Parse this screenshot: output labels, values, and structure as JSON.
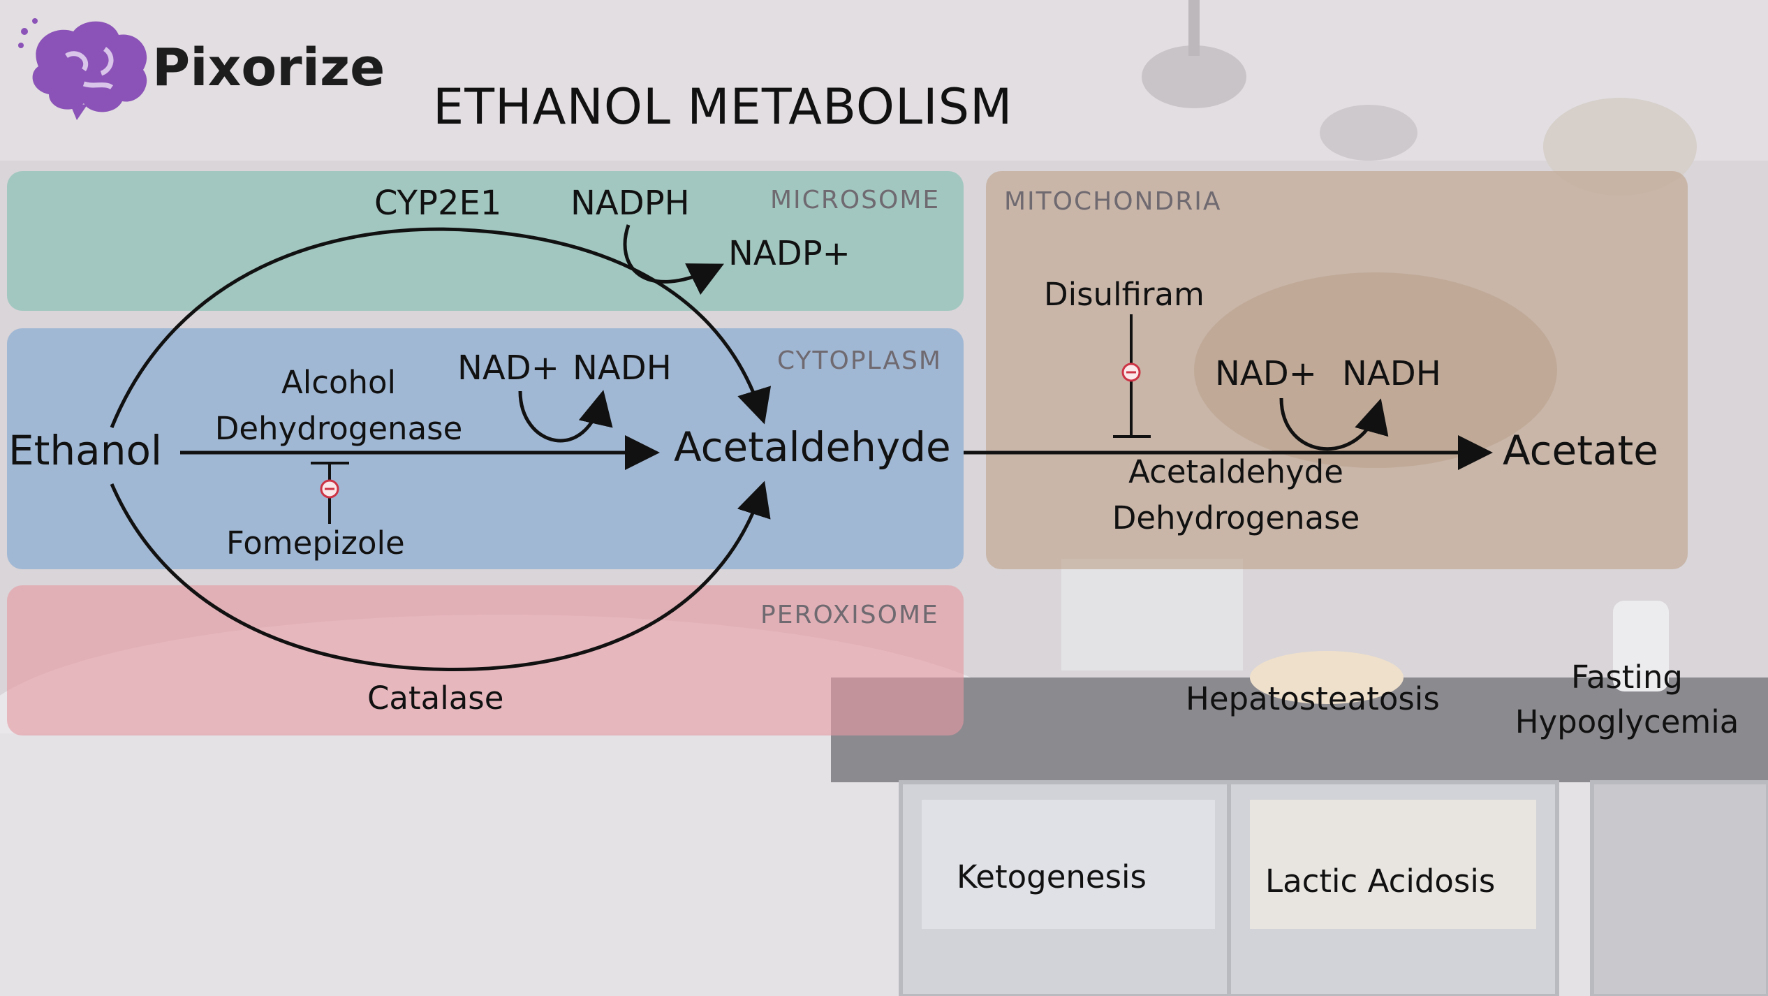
{
  "brand": {
    "name": "Pixorize",
    "logo_icon": "brain-logo-icon",
    "logo_color": "#8b52b7"
  },
  "title": "ETHANOL METABOLISM",
  "regions": {
    "microsome": {
      "label": "MICROSOME",
      "color": "#7fbfb2"
    },
    "cytoplasm": {
      "label": "CYTOPLASM",
      "color": "#7ea6d2"
    },
    "peroxisome": {
      "label": "PEROXISOME",
      "color": "#e59aa3"
    },
    "mitochondria": {
      "label": "MITOCHONDRIA",
      "color": "#bfa38c"
    }
  },
  "nodes": {
    "ethanol": "Ethanol",
    "acetaldehyde": "Acetaldehyde",
    "acetate": "Acetate"
  },
  "enzymes": {
    "cyp2e1": "CYP2E1",
    "adh_line1": "Alcohol",
    "adh_line2": "Dehydrogenase",
    "catalase": "Catalase",
    "aldh_line1": "Acetaldehyde",
    "aldh_line2": "Dehydrogenase"
  },
  "cofactors": {
    "nadph": "NADPH",
    "nadp": "NADP+",
    "nad_cyto": "NAD+",
    "nadh_cyto": "NADH",
    "nad_mito": "NAD+",
    "nadh_mito": "NADH"
  },
  "inhibitors": {
    "fomepizole": "Fomepizole",
    "disulfiram": "Disulfiram",
    "inhibit_icon": "minus-circle-icon"
  },
  "consequences": {
    "hepatosteatosis": "Hepatosteatosis",
    "fasting_line1": "Fasting",
    "fasting_line2": "Hypoglycemia",
    "ketogenesis": "Ketogenesis",
    "lactic_acidosis": "Lactic Acidosis"
  }
}
